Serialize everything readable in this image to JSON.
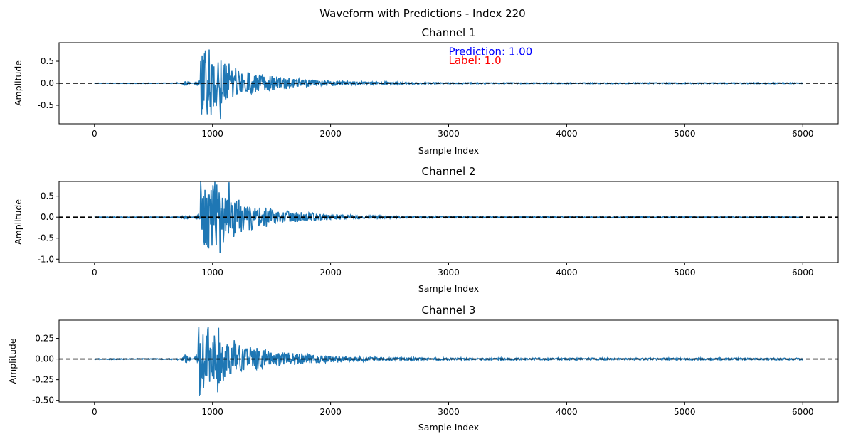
{
  "figure": {
    "suptitle": "Waveform with Predictions - Index 220",
    "colors": {
      "wave": "#1f77b4",
      "zero_line": "#000000",
      "prediction": "#0000ff",
      "label": "#ff0000"
    },
    "annotations": {
      "prediction": "Prediction: 1.00",
      "label": "Label: 1.0"
    }
  },
  "chart_data": [
    {
      "type": "line",
      "title": "Channel 1",
      "xlabel": "Sample Index",
      "ylabel": "Amplitude",
      "xlim": [
        -300,
        6300
      ],
      "ylim": [
        -0.92,
        0.92
      ],
      "xticks": [
        0,
        1000,
        2000,
        3000,
        4000,
        5000,
        6000
      ],
      "xtick_labels": [
        "0",
        "1000",
        "2000",
        "3000",
        "4000",
        "5000",
        "6000"
      ],
      "yticks": [
        0.5,
        0.0,
        -0.5
      ],
      "ytick_labels": [
        "0.5",
        "0.0",
        "-0.5"
      ],
      "zero_line": 0,
      "envelope": {
        "peak": 0.85,
        "onset": 900,
        "precursor": 700,
        "decay": 380
      },
      "annotations": [
        {
          "text_key": "prediction",
          "x": 3000,
          "y": 0.72
        },
        {
          "text_key": "label",
          "x": 3000,
          "y": 0.52
        }
      ]
    },
    {
      "type": "line",
      "title": "Channel 2",
      "xlabel": "Sample Index",
      "ylabel": "Amplitude",
      "xlim": [
        -300,
        6300
      ],
      "ylim": [
        -1.08,
        0.85
      ],
      "xticks": [
        0,
        1000,
        2000,
        3000,
        4000,
        5000,
        6000
      ],
      "xtick_labels": [
        "0",
        "1000",
        "2000",
        "3000",
        "4000",
        "5000",
        "6000"
      ],
      "yticks": [
        0.5,
        0.0,
        -0.5,
        -1.0
      ],
      "ytick_labels": [
        "0.5",
        "0.0",
        "-0.5",
        "-1.0"
      ],
      "zero_line": 0,
      "envelope": {
        "peak": 0.95,
        "onset": 900,
        "precursor": 700,
        "decay": 400
      }
    },
    {
      "type": "line",
      "title": "Channel 3",
      "xlabel": "Sample Index",
      "ylabel": "Amplitude",
      "xlim": [
        -300,
        6300
      ],
      "ylim": [
        -0.52,
        0.47
      ],
      "xticks": [
        0,
        1000,
        2000,
        3000,
        4000,
        5000,
        6000
      ],
      "xtick_labels": [
        "0",
        "1000",
        "2000",
        "3000",
        "4000",
        "5000",
        "6000"
      ],
      "yticks": [
        0.25,
        0.0,
        -0.25,
        -0.5
      ],
      "ytick_labels": [
        "0.25",
        "0.00",
        "-0.25",
        "-0.50"
      ],
      "zero_line": 0,
      "envelope": {
        "peak": 0.45,
        "onset": 880,
        "precursor": 700,
        "decay": 420
      }
    }
  ]
}
